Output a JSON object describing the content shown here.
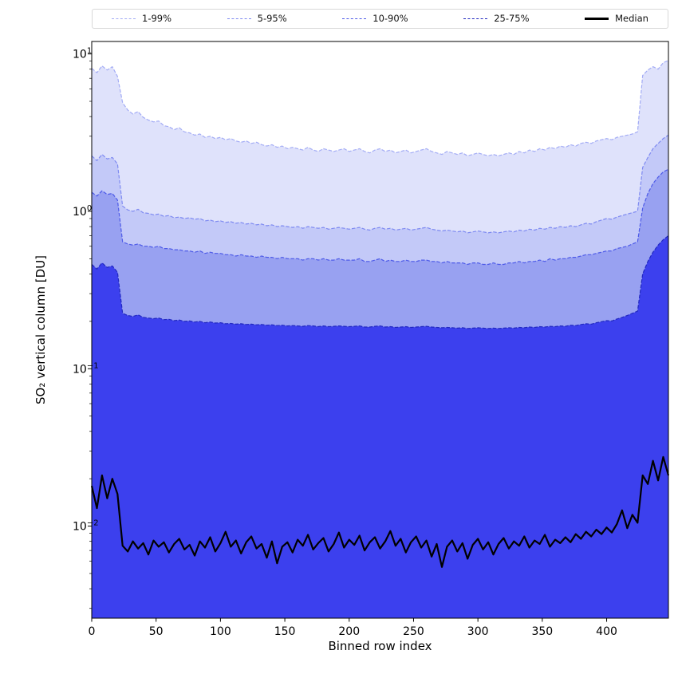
{
  "chart_data": {
    "type": "area",
    "title": "",
    "xlabel": "Binned row index",
    "ylabel": "SO₂ vertical column [DU]",
    "x_scale": "linear",
    "y_scale": "log",
    "x_range": [
      0,
      448
    ],
    "y_range": [
      0.0026,
      12
    ],
    "x_ticks": [
      0,
      50,
      100,
      150,
      200,
      250,
      300,
      350,
      400
    ],
    "y_ticks": [
      0.01,
      0.1,
      1,
      10
    ],
    "grid": false,
    "legend_position": "top",
    "x_start": 0,
    "x_step": 4,
    "series": [
      {
        "name": "p1-99",
        "legend": "1-99%",
        "dash": true,
        "stroke": "#a3acf5",
        "fill": "#dfe2fb",
        "values": [
          8.1,
          7.6,
          8.4,
          7.9,
          8.3,
          7.2,
          4.9,
          4.4,
          4.15,
          4.3,
          3.95,
          3.8,
          3.7,
          3.75,
          3.5,
          3.45,
          3.3,
          3.4,
          3.2,
          3.15,
          3.05,
          3.1,
          2.95,
          3.0,
          2.9,
          2.95,
          2.85,
          2.9,
          2.8,
          2.75,
          2.8,
          2.7,
          2.75,
          2.65,
          2.6,
          2.65,
          2.55,
          2.6,
          2.5,
          2.55,
          2.5,
          2.45,
          2.55,
          2.45,
          2.4,
          2.5,
          2.45,
          2.4,
          2.45,
          2.5,
          2.4,
          2.45,
          2.5,
          2.4,
          2.35,
          2.45,
          2.5,
          2.4,
          2.45,
          2.35,
          2.4,
          2.45,
          2.35,
          2.4,
          2.45,
          2.5,
          2.4,
          2.35,
          2.3,
          2.4,
          2.35,
          2.3,
          2.35,
          2.25,
          2.3,
          2.35,
          2.3,
          2.25,
          2.3,
          2.25,
          2.3,
          2.35,
          2.3,
          2.4,
          2.35,
          2.45,
          2.4,
          2.5,
          2.45,
          2.55,
          2.5,
          2.6,
          2.55,
          2.65,
          2.6,
          2.7,
          2.75,
          2.7,
          2.8,
          2.85,
          2.9,
          2.85,
          2.95,
          3.0,
          3.05,
          3.1,
          3.2,
          7.3,
          7.9,
          8.3,
          8.0,
          8.8,
          9.1
        ]
      },
      {
        "name": "p5-95",
        "legend": "5-95%",
        "dash": true,
        "stroke": "#7e8af1",
        "fill": "#c3c9f8",
        "values": [
          2.25,
          2.1,
          2.3,
          2.15,
          2.2,
          2.0,
          1.08,
          1.02,
          1.0,
          1.03,
          0.98,
          0.97,
          0.95,
          0.96,
          0.93,
          0.94,
          0.91,
          0.92,
          0.9,
          0.91,
          0.89,
          0.9,
          0.87,
          0.88,
          0.86,
          0.87,
          0.85,
          0.86,
          0.84,
          0.85,
          0.83,
          0.84,
          0.82,
          0.83,
          0.81,
          0.82,
          0.8,
          0.81,
          0.8,
          0.79,
          0.8,
          0.78,
          0.8,
          0.79,
          0.78,
          0.79,
          0.77,
          0.78,
          0.79,
          0.78,
          0.77,
          0.78,
          0.79,
          0.77,
          0.76,
          0.78,
          0.79,
          0.77,
          0.78,
          0.76,
          0.77,
          0.78,
          0.76,
          0.77,
          0.78,
          0.79,
          0.77,
          0.76,
          0.75,
          0.76,
          0.75,
          0.74,
          0.75,
          0.73,
          0.74,
          0.75,
          0.74,
          0.73,
          0.74,
          0.73,
          0.74,
          0.75,
          0.74,
          0.76,
          0.75,
          0.77,
          0.76,
          0.78,
          0.77,
          0.79,
          0.78,
          0.8,
          0.79,
          0.81,
          0.8,
          0.82,
          0.84,
          0.83,
          0.86,
          0.88,
          0.9,
          0.89,
          0.92,
          0.94,
          0.96,
          0.98,
          1.0,
          1.9,
          2.2,
          2.5,
          2.7,
          2.9,
          3.05
        ]
      },
      {
        "name": "p10-90",
        "legend": "10-90%",
        "dash": true,
        "stroke": "#4d5ae8",
        "fill": "#98a1f1",
        "values": [
          1.32,
          1.25,
          1.35,
          1.28,
          1.3,
          1.18,
          0.64,
          0.62,
          0.61,
          0.62,
          0.6,
          0.6,
          0.59,
          0.6,
          0.58,
          0.58,
          0.57,
          0.57,
          0.56,
          0.56,
          0.55,
          0.56,
          0.54,
          0.55,
          0.54,
          0.54,
          0.53,
          0.53,
          0.52,
          0.53,
          0.52,
          0.52,
          0.51,
          0.52,
          0.51,
          0.51,
          0.5,
          0.51,
          0.5,
          0.5,
          0.5,
          0.49,
          0.5,
          0.5,
          0.49,
          0.5,
          0.49,
          0.49,
          0.5,
          0.49,
          0.49,
          0.49,
          0.5,
          0.48,
          0.48,
          0.49,
          0.5,
          0.48,
          0.49,
          0.48,
          0.48,
          0.49,
          0.48,
          0.48,
          0.49,
          0.49,
          0.48,
          0.48,
          0.47,
          0.48,
          0.47,
          0.47,
          0.47,
          0.46,
          0.47,
          0.47,
          0.46,
          0.46,
          0.47,
          0.46,
          0.46,
          0.47,
          0.47,
          0.48,
          0.47,
          0.48,
          0.48,
          0.49,
          0.48,
          0.5,
          0.49,
          0.5,
          0.5,
          0.51,
          0.51,
          0.52,
          0.53,
          0.53,
          0.54,
          0.55,
          0.56,
          0.56,
          0.58,
          0.59,
          0.6,
          0.62,
          0.64,
          1.05,
          1.3,
          1.5,
          1.65,
          1.78,
          1.85
        ]
      },
      {
        "name": "p25-75",
        "legend": "25-75%",
        "dash": true,
        "stroke": "#2128c0",
        "fill": "#3c40ee",
        "values": [
          0.46,
          0.43,
          0.47,
          0.44,
          0.45,
          0.41,
          0.225,
          0.218,
          0.215,
          0.22,
          0.212,
          0.21,
          0.208,
          0.21,
          0.205,
          0.206,
          0.202,
          0.204,
          0.2,
          0.201,
          0.198,
          0.2,
          0.196,
          0.198,
          0.195,
          0.196,
          0.193,
          0.194,
          0.192,
          0.193,
          0.191,
          0.192,
          0.19,
          0.191,
          0.189,
          0.19,
          0.188,
          0.189,
          0.187,
          0.188,
          0.187,
          0.186,
          0.188,
          0.187,
          0.185,
          0.187,
          0.185,
          0.186,
          0.187,
          0.186,
          0.185,
          0.186,
          0.187,
          0.184,
          0.184,
          0.186,
          0.187,
          0.184,
          0.185,
          0.183,
          0.184,
          0.185,
          0.183,
          0.184,
          0.185,
          0.186,
          0.184,
          0.183,
          0.182,
          0.183,
          0.182,
          0.181,
          0.182,
          0.18,
          0.181,
          0.182,
          0.181,
          0.18,
          0.181,
          0.18,
          0.181,
          0.182,
          0.181,
          0.183,
          0.182,
          0.184,
          0.183,
          0.185,
          0.184,
          0.186,
          0.185,
          0.187,
          0.186,
          0.189,
          0.188,
          0.191,
          0.193,
          0.192,
          0.196,
          0.199,
          0.202,
          0.201,
          0.207,
          0.212,
          0.218,
          0.225,
          0.232,
          0.4,
          0.48,
          0.55,
          0.61,
          0.66,
          0.7
        ]
      },
      {
        "name": "median",
        "legend": "Median",
        "dash": false,
        "stroke": "#000000",
        "width": 2.2,
        "values": [
          0.018,
          0.013,
          0.021,
          0.015,
          0.02,
          0.016,
          0.0075,
          0.0069,
          0.008,
          0.0072,
          0.0078,
          0.0066,
          0.0081,
          0.0074,
          0.0079,
          0.0068,
          0.0077,
          0.0083,
          0.0071,
          0.0076,
          0.0065,
          0.008,
          0.0073,
          0.0085,
          0.0069,
          0.0078,
          0.0092,
          0.0074,
          0.0081,
          0.0067,
          0.0079,
          0.0086,
          0.0072,
          0.0077,
          0.0063,
          0.008,
          0.0058,
          0.0074,
          0.0079,
          0.0068,
          0.0082,
          0.0075,
          0.0088,
          0.0071,
          0.0078,
          0.0084,
          0.0069,
          0.0077,
          0.0091,
          0.0073,
          0.0082,
          0.0076,
          0.0087,
          0.007,
          0.0079,
          0.0085,
          0.0072,
          0.008,
          0.0093,
          0.0075,
          0.0083,
          0.0068,
          0.0079,
          0.0086,
          0.0073,
          0.0081,
          0.0064,
          0.0077,
          0.0055,
          0.0074,
          0.0081,
          0.0069,
          0.0078,
          0.0062,
          0.0076,
          0.0083,
          0.0071,
          0.0079,
          0.0066,
          0.0077,
          0.0084,
          0.0072,
          0.008,
          0.0075,
          0.0086,
          0.0073,
          0.0081,
          0.0077,
          0.0088,
          0.0074,
          0.0082,
          0.0078,
          0.0085,
          0.0079,
          0.0089,
          0.0083,
          0.0092,
          0.0086,
          0.0095,
          0.0089,
          0.0098,
          0.0091,
          0.0103,
          0.0126,
          0.0097,
          0.0118,
          0.0105,
          0.021,
          0.0185,
          0.026,
          0.0195,
          0.0275,
          0.021
        ]
      }
    ]
  }
}
